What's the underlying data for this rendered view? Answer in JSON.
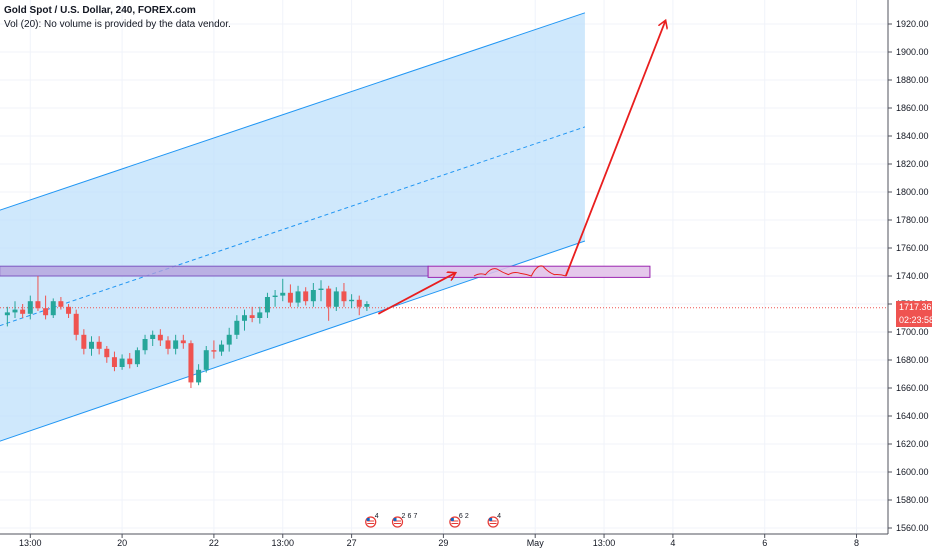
{
  "legend": {
    "symbol": "Gold Spot / U.S. Dollar, 240, FOREX.com",
    "volume": "Vol (20): No volume is provided by the data vendor."
  },
  "colors": {
    "up": "#26a69a",
    "down": "#ef5350",
    "channel_fill": "#bbdefb",
    "channel_line": "#2196f3",
    "zone_purple": "#b39ddb",
    "zone_pink": "#e1bee7",
    "arrow": "#e91e1e",
    "price_line": "#ef5350",
    "grid": "#f0f3fa"
  },
  "price_tag": {
    "price": "1717.36",
    "countdown": "02:23:58"
  },
  "chart_data": {
    "type": "candlestick",
    "title": "Gold Spot / U.S. Dollar, 240, FOREX.com",
    "xlabel": "",
    "ylabel": "",
    "ylim": [
      1555,
      1935
    ],
    "x_ticks": [
      {
        "label": "13:00",
        "t": 2
      },
      {
        "label": "20",
        "t": 14
      },
      {
        "label": "22",
        "t": 26
      },
      {
        "label": "13:00",
        "t": 35
      },
      {
        "label": "27",
        "t": 44
      },
      {
        "label": "29",
        "t": 56
      },
      {
        "label": "May",
        "t": 68
      },
      {
        "label": "13:00",
        "t": 77
      },
      {
        "label": "4",
        "t": 86
      },
      {
        "label": "6",
        "t": 98
      },
      {
        "label": "8",
        "t": 110
      }
    ],
    "y_ticks": [
      1560,
      1580,
      1600,
      1620,
      1640,
      1660,
      1680,
      1700,
      1720,
      1740,
      1760,
      1780,
      1800,
      1820,
      1840,
      1860,
      1880,
      1900,
      1920
    ],
    "last_price": 1717.36,
    "candles": [
      {
        "t": -1,
        "o": 1712,
        "h": 1718,
        "l": 1704,
        "c": 1714
      },
      {
        "t": 0,
        "o": 1714,
        "h": 1722,
        "l": 1710,
        "c": 1716
      },
      {
        "t": 1,
        "o": 1716,
        "h": 1720,
        "l": 1710,
        "c": 1713
      },
      {
        "t": 2,
        "o": 1713,
        "h": 1726,
        "l": 1709,
        "c": 1722
      },
      {
        "t": 3,
        "o": 1722,
        "h": 1740,
        "l": 1715,
        "c": 1717
      },
      {
        "t": 4,
        "o": 1717,
        "h": 1726,
        "l": 1709,
        "c": 1712
      },
      {
        "t": 5,
        "o": 1712,
        "h": 1724,
        "l": 1710,
        "c": 1722
      },
      {
        "t": 6,
        "o": 1722,
        "h": 1725,
        "l": 1716,
        "c": 1718
      },
      {
        "t": 7,
        "o": 1718,
        "h": 1720,
        "l": 1710,
        "c": 1713
      },
      {
        "t": 8,
        "o": 1713,
        "h": 1716,
        "l": 1694,
        "c": 1698
      },
      {
        "t": 9,
        "o": 1698,
        "h": 1702,
        "l": 1684,
        "c": 1688
      },
      {
        "t": 10,
        "o": 1688,
        "h": 1697,
        "l": 1683,
        "c": 1693
      },
      {
        "t": 11,
        "o": 1693,
        "h": 1697,
        "l": 1684,
        "c": 1688
      },
      {
        "t": 12,
        "o": 1688,
        "h": 1690,
        "l": 1678,
        "c": 1682
      },
      {
        "t": 13,
        "o": 1682,
        "h": 1686,
        "l": 1672,
        "c": 1675
      },
      {
        "t": 14,
        "o": 1675,
        "h": 1684,
        "l": 1673,
        "c": 1681
      },
      {
        "t": 15,
        "o": 1681,
        "h": 1685,
        "l": 1674,
        "c": 1677
      },
      {
        "t": 16,
        "o": 1677,
        "h": 1689,
        "l": 1675,
        "c": 1687
      },
      {
        "t": 17,
        "o": 1687,
        "h": 1698,
        "l": 1684,
        "c": 1695
      },
      {
        "t": 18,
        "o": 1695,
        "h": 1701,
        "l": 1690,
        "c": 1698
      },
      {
        "t": 19,
        "o": 1698,
        "h": 1702,
        "l": 1690,
        "c": 1694
      },
      {
        "t": 20,
        "o": 1694,
        "h": 1697,
        "l": 1684,
        "c": 1688
      },
      {
        "t": 21,
        "o": 1688,
        "h": 1698,
        "l": 1684,
        "c": 1694
      },
      {
        "t": 22,
        "o": 1694,
        "h": 1698,
        "l": 1688,
        "c": 1692
      },
      {
        "t": 23,
        "o": 1692,
        "h": 1694,
        "l": 1660,
        "c": 1664
      },
      {
        "t": 24,
        "o": 1664,
        "h": 1677,
        "l": 1662,
        "c": 1673
      },
      {
        "t": 25,
        "o": 1673,
        "h": 1690,
        "l": 1671,
        "c": 1687
      },
      {
        "t": 26,
        "o": 1687,
        "h": 1694,
        "l": 1681,
        "c": 1686
      },
      {
        "t": 27,
        "o": 1686,
        "h": 1694,
        "l": 1683,
        "c": 1691
      },
      {
        "t": 28,
        "o": 1691,
        "h": 1703,
        "l": 1686,
        "c": 1698
      },
      {
        "t": 29,
        "o": 1698,
        "h": 1712,
        "l": 1695,
        "c": 1708
      },
      {
        "t": 30,
        "o": 1708,
        "h": 1716,
        "l": 1701,
        "c": 1712
      },
      {
        "t": 31,
        "o": 1712,
        "h": 1718,
        "l": 1707,
        "c": 1710
      },
      {
        "t": 32,
        "o": 1710,
        "h": 1718,
        "l": 1706,
        "c": 1714
      },
      {
        "t": 33,
        "o": 1714,
        "h": 1728,
        "l": 1710,
        "c": 1725
      },
      {
        "t": 34,
        "o": 1725,
        "h": 1730,
        "l": 1718,
        "c": 1726
      },
      {
        "t": 35,
        "o": 1726,
        "h": 1738,
        "l": 1722,
        "c": 1728
      },
      {
        "t": 36,
        "o": 1728,
        "h": 1734,
        "l": 1718,
        "c": 1721
      },
      {
        "t": 37,
        "o": 1721,
        "h": 1733,
        "l": 1718,
        "c": 1729
      },
      {
        "t": 38,
        "o": 1729,
        "h": 1732,
        "l": 1719,
        "c": 1722
      },
      {
        "t": 39,
        "o": 1722,
        "h": 1735,
        "l": 1718,
        "c": 1730
      },
      {
        "t": 40,
        "o": 1730,
        "h": 1737,
        "l": 1722,
        "c": 1731
      },
      {
        "t": 41,
        "o": 1731,
        "h": 1733,
        "l": 1708,
        "c": 1718
      },
      {
        "t": 42,
        "o": 1718,
        "h": 1732,
        "l": 1715,
        "c": 1729
      },
      {
        "t": 43,
        "o": 1729,
        "h": 1735,
        "l": 1718,
        "c": 1722
      },
      {
        "t": 44,
        "o": 1722,
        "h": 1727,
        "l": 1717,
        "c": 1723
      },
      {
        "t": 45,
        "o": 1723,
        "h": 1726,
        "l": 1712,
        "c": 1718
      },
      {
        "t": 46,
        "o": 1718,
        "h": 1722,
        "l": 1715,
        "c": 1720
      }
    ],
    "drawings": {
      "channel": {
        "upper": [
          [
            -2,
            1787
          ],
          [
            74.5,
            1928
          ]
        ],
        "lower": [
          [
            -2,
            1622
          ],
          [
            74.5,
            1765
          ]
        ]
      },
      "zone_purple": {
        "t0": -2,
        "t1": 54,
        "top": 1747,
        "bottom": 1740
      },
      "zone_pink": {
        "t0": 54,
        "t1": 83,
        "top": 1747,
        "bottom": 1739
      },
      "arrows": [
        {
          "from": [
            47.5,
            1713
          ],
          "to": [
            57.5,
            1742
          ]
        },
        {
          "from": [
            72,
            1740
          ],
          "to": [
            85,
            1922
          ]
        }
      ],
      "wave": [
        [
          60,
          1740
        ],
        [
          61.5,
          1741
        ],
        [
          63,
          1745
        ],
        [
          64.5,
          1741
        ],
        [
          66,
          1742
        ],
        [
          67.5,
          1740
        ],
        [
          69,
          1747
        ],
        [
          70.5,
          1741
        ],
        [
          72,
          1740
        ]
      ]
    },
    "events": [
      {
        "t": 46.5,
        "labels": [
          "4"
        ]
      },
      {
        "t": 50,
        "labels": [
          "2",
          "6",
          "7"
        ]
      },
      {
        "t": 57.5,
        "labels": [
          "6",
          "2"
        ]
      },
      {
        "t": 62.5,
        "labels": [
          "4"
        ]
      }
    ]
  }
}
